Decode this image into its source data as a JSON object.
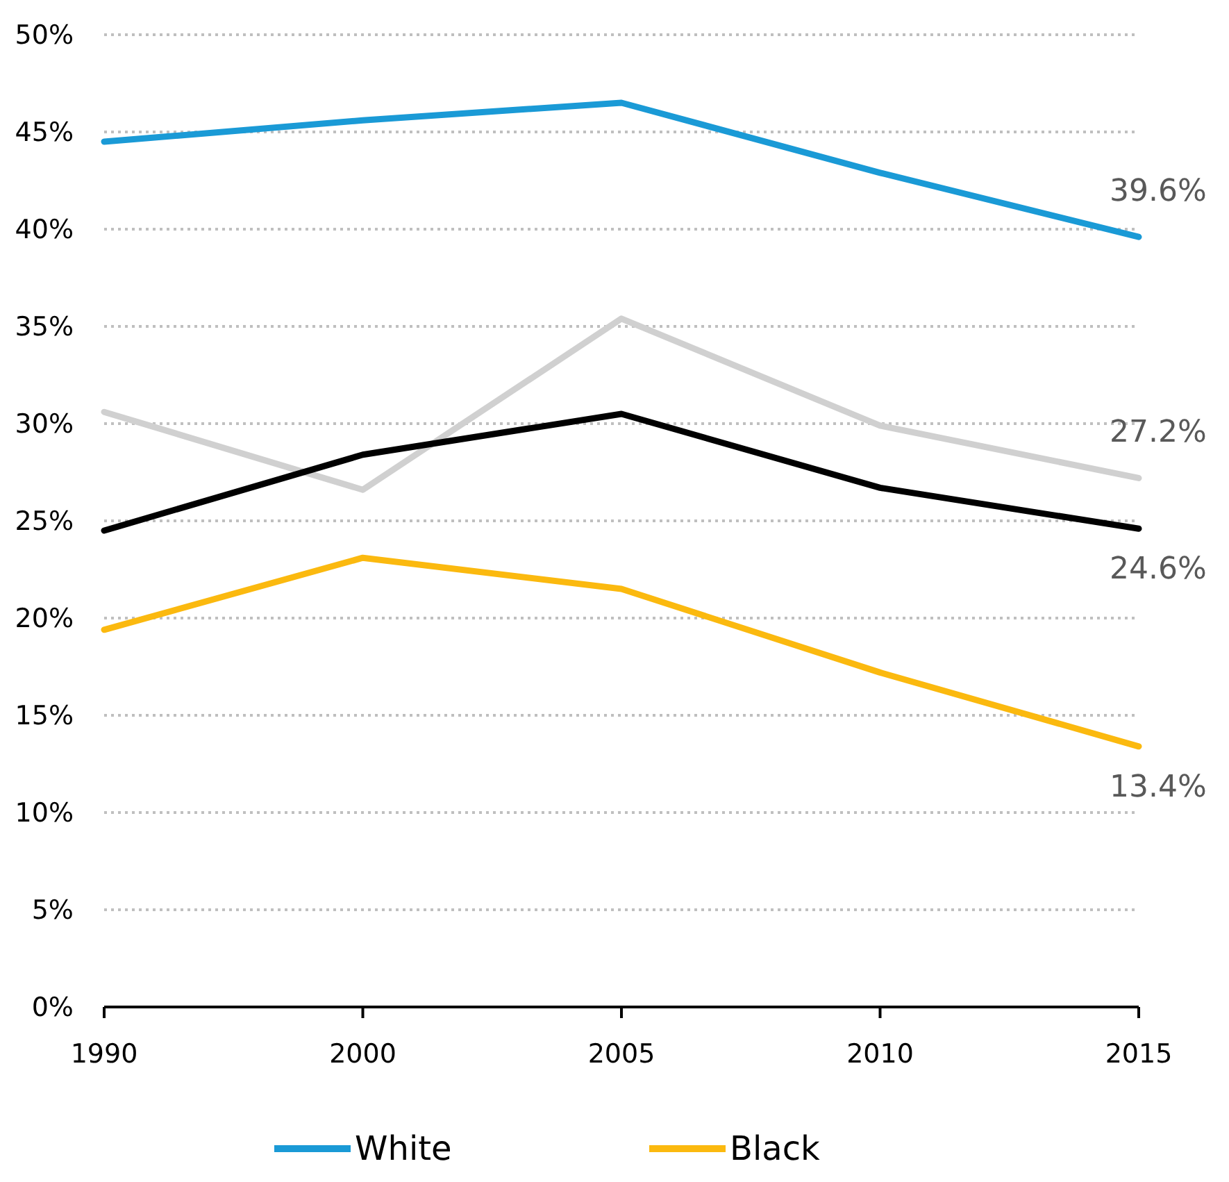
{
  "chart_data": {
    "type": "line",
    "categories": [
      "1990",
      "2000",
      "2005",
      "2010",
      "2015"
    ],
    "series": [
      {
        "name": "White",
        "color": "#1a9ad6",
        "values": [
          44.5,
          45.6,
          46.5,
          42.9,
          39.6
        ],
        "value_labels": [
          null,
          null,
          null,
          null,
          "39.6%"
        ]
      },
      {
        "color": "#d0d0d0",
        "values": [
          30.6,
          26.6,
          35.4,
          29.9,
          27.2
        ],
        "value_labels": [
          null,
          null,
          null,
          null,
          "27.2%"
        ]
      },
      {
        "color": "#000000",
        "values": [
          24.5,
          28.4,
          30.5,
          26.7,
          24.6
        ],
        "value_labels": [
          null,
          null,
          null,
          null,
          "24.6%"
        ]
      },
      {
        "name": "Black",
        "color": "#fbb90f",
        "values": [
          19.4,
          23.1,
          21.5,
          17.2,
          13.4
        ],
        "value_labels": [
          null,
          null,
          null,
          null,
          "13.4%"
        ]
      }
    ],
    "ylim": [
      0,
      50
    ],
    "yticks": [
      {
        "value": 0,
        "label": "0%"
      },
      {
        "value": 5,
        "label": "5%"
      },
      {
        "value": 10,
        "label": "10%"
      },
      {
        "value": 15,
        "label": "15%"
      },
      {
        "value": 20,
        "label": "20%"
      },
      {
        "value": 25,
        "label": "25%"
      },
      {
        "value": 30,
        "label": "30%"
      },
      {
        "value": 35,
        "label": "35%"
      },
      {
        "value": 40,
        "label": "40%"
      },
      {
        "value": 45,
        "label": "45%"
      },
      {
        "value": 50,
        "label": "50%"
      }
    ],
    "grid": "y",
    "legend": "bottom",
    "marker": "none",
    "line_style": "solid"
  }
}
